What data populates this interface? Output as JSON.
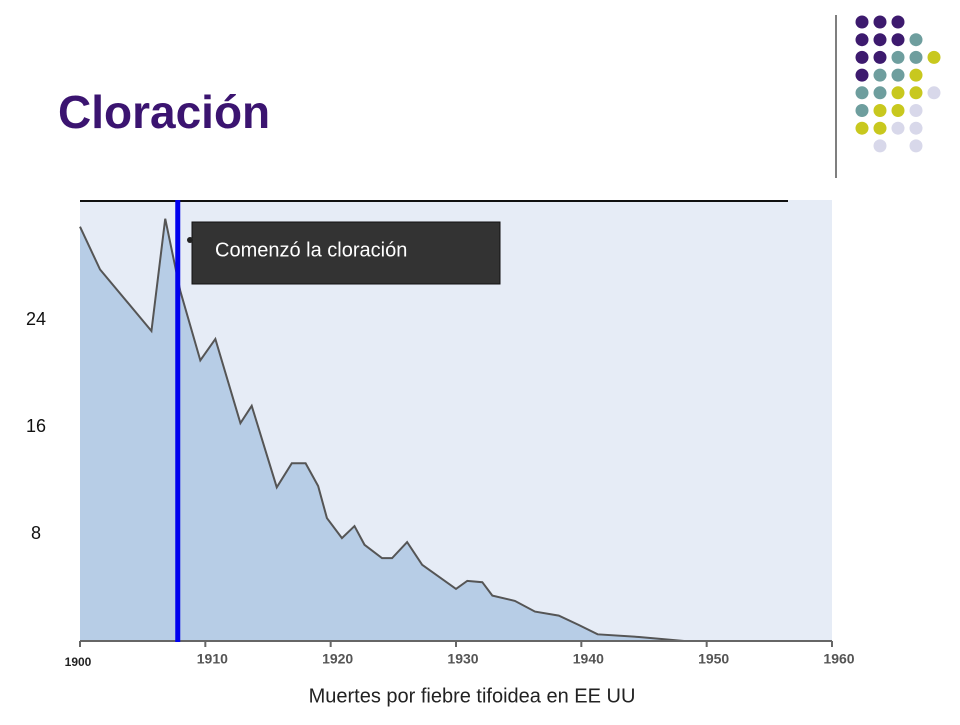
{
  "chart_data": {
    "type": "area",
    "title": "Cloración",
    "xlabel": "Muertes por fiebre tifoidea en EE UU",
    "x": [
      1900,
      1901.6,
      1905.7,
      1906.8,
      1908,
      1909.6,
      1910.8,
      1912.8,
      1913.7,
      1915.7,
      1916.9,
      1918,
      1919,
      1919.7,
      1920.9,
      1921.9,
      1922.7,
      1924.1,
      1924.9,
      1926.1,
      1927.3,
      1930,
      1930.9,
      1932.1,
      1932.9,
      1934.7,
      1936.3,
      1938.2,
      1939.8,
      1941.3,
      1944.6,
      1948.2
    ],
    "values": [
      31,
      27.8,
      23.2,
      31.6,
      26.2,
      21,
      22.6,
      16.3,
      17.6,
      11.5,
      13.3,
      13.3,
      11.6,
      9.2,
      7.7,
      8.6,
      7.2,
      6.2,
      6.2,
      7.4,
      5.7,
      3.9,
      4.5,
      4.4,
      3.4,
      3,
      2.2,
      1.9,
      1.2,
      0.5,
      0.3,
      0
    ],
    "color": "#b7cde6",
    "line_color": "#555555",
    "xlim": [
      1900,
      1960
    ],
    "xticks": [
      1900,
      1910,
      1920,
      1930,
      1940,
      1950,
      1960
    ],
    "ylim": [
      0,
      33
    ],
    "yticks": [
      8,
      16,
      24
    ],
    "annotation": {
      "text": "Comenzó la cloración",
      "x": 1907.8,
      "color": "#0000ee"
    }
  }
}
